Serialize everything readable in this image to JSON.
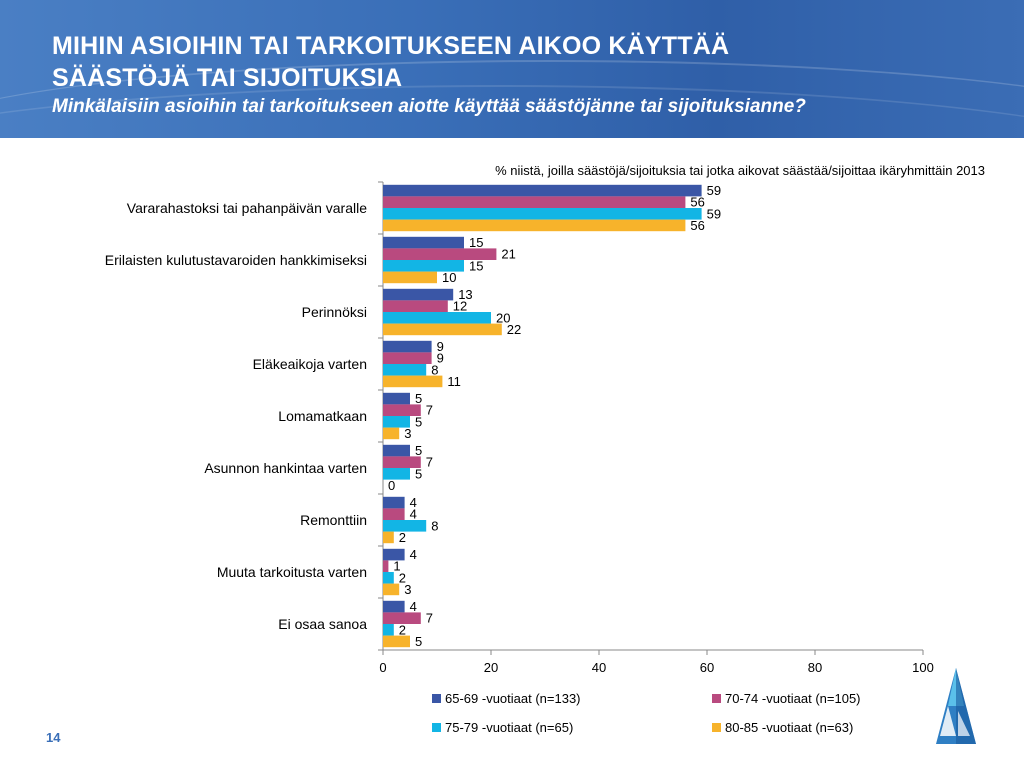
{
  "header": {
    "title_line1": "MIHIN ASIOIHIN TAI TARKOITUKSEEN AIKOO KÄYTTÄÄ",
    "title_line2": "SÄÄSTÖJÄ TAI SIJOITUKSIA",
    "subtitle": "Minkälaisiin asioihin tai tarkoitukseen aiotte käyttää säästöjänne tai sijoituksianne?"
  },
  "slide_number": "14",
  "chart_data": {
    "type": "bar",
    "orientation": "horizontal",
    "note": "% niistä, joilla säästöjä/sijoituksia tai jotka aikovat säästää/sijoittaa ikäryhmittäin 2013",
    "categories": [
      "Vararahastoksi tai pahanpäivän varalle",
      "Erilaisten kulutustavaroiden hankkimiseksi",
      "Perinnöksi",
      "Eläkeaikoja varten",
      "Lomamatkaan",
      "Asunnon hankintaa varten",
      "Remonttiin",
      "Muuta tarkoitusta varten",
      "Ei osaa sanoa"
    ],
    "series": [
      {
        "name": "65-69 -vuotiaat (n=133)",
        "color": "#3a56a6",
        "values": [
          59,
          15,
          13,
          9,
          5,
          5,
          4,
          4,
          4
        ]
      },
      {
        "name": "70-74 -vuotiaat (n=105)",
        "color": "#b94a7f",
        "values": [
          56,
          21,
          12,
          9,
          7,
          7,
          4,
          1,
          7
        ]
      },
      {
        "name": "75-79 -vuotiaat (n=65)",
        "color": "#12b5e5",
        "values": [
          59,
          15,
          20,
          8,
          5,
          5,
          8,
          2,
          2
        ]
      },
      {
        "name": "80-85 -vuotiaat (n=63)",
        "color": "#f7b32b",
        "values": [
          56,
          10,
          22,
          11,
          3,
          0,
          2,
          3,
          5
        ]
      }
    ],
    "xlim": [
      0,
      100
    ],
    "xticks": [
      0,
      20,
      40,
      60,
      80,
      100
    ],
    "grid": false,
    "legend_position": "bottom"
  }
}
